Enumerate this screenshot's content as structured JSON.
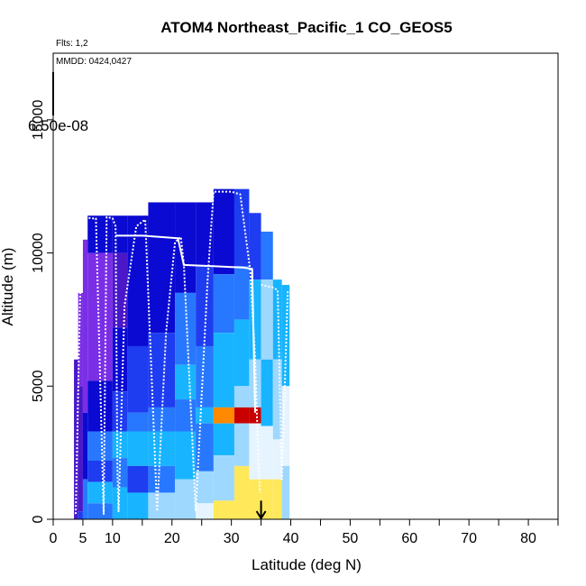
{
  "chart_data": {
    "type": "heatmap",
    "title": "ATOM4 Northeast_Pacific_1 CO_GEOS5",
    "flights_text": "Flts: 1,2",
    "date_text": "MMDD: 0424,0427",
    "colorbar_label": "6.50e-08",
    "xlabel": "Latitude (deg N)",
    "ylabel": "Altitude (m)",
    "xlim": [
      0,
      85
    ],
    "ylim": [
      0,
      17500
    ],
    "x_ticks": [
      0,
      5,
      10,
      20,
      30,
      40,
      50,
      60,
      70,
      80
    ],
    "y_ticks": [
      0,
      5000,
      10000,
      15000
    ],
    "marker": {
      "x": 35,
      "y_top": 700,
      "y_bottom": 0
    },
    "colors": {
      "deep_blue": "#0a0ad2",
      "blue": "#1e3cf0",
      "mid_blue": "#2878ff",
      "cyan": "#19b4ff",
      "light_blue": "#9ed8ff",
      "pale": "#e6f4ff",
      "yellow": "#ffe85a",
      "orange": "#ff8a00",
      "red": "#c80000",
      "purple": "#7a2ee6",
      "violet": "#4a18c8",
      "track": "#ffffff"
    },
    "columns": [
      {
        "x0": 3.5,
        "x1": 4.2,
        "top": 6000,
        "segments": [
          {
            "top": 6000,
            "bottom": 0,
            "color": "violet"
          }
        ]
      },
      {
        "x0": 4.2,
        "x1": 5.0,
        "top": 8500,
        "segments": [
          {
            "top": 8500,
            "bottom": 5000,
            "color": "purple"
          },
          {
            "top": 5000,
            "bottom": 300,
            "color": "violet"
          },
          {
            "top": 300,
            "bottom": 0,
            "color": "blue"
          }
        ]
      },
      {
        "x0": 5.0,
        "x1": 5.8,
        "top": 10500,
        "segments": [
          {
            "top": 10500,
            "bottom": 4000,
            "color": "purple"
          },
          {
            "top": 4000,
            "bottom": 1500,
            "color": "deep_blue"
          },
          {
            "top": 1500,
            "bottom": 0,
            "color": "mid_blue"
          }
        ]
      },
      {
        "x0": 5.8,
        "x1": 10.0,
        "top": 11400,
        "segments": [
          {
            "top": 11400,
            "bottom": 10000,
            "color": "deep_blue"
          },
          {
            "top": 10000,
            "bottom": 5200,
            "color": "purple"
          },
          {
            "top": 5200,
            "bottom": 3300,
            "color": "deep_blue"
          },
          {
            "top": 3300,
            "bottom": 2200,
            "color": "mid_blue"
          },
          {
            "top": 2200,
            "bottom": 1400,
            "color": "blue"
          },
          {
            "top": 1400,
            "bottom": 600,
            "color": "cyan"
          },
          {
            "top": 600,
            "bottom": 0,
            "color": "mid_blue"
          }
        ]
      },
      {
        "x0": 10.0,
        "x1": 12.5,
        "top": 11400,
        "segments": [
          {
            "top": 11400,
            "bottom": 10000,
            "color": "deep_blue"
          },
          {
            "top": 10000,
            "bottom": 7200,
            "color": "violet"
          },
          {
            "top": 7200,
            "bottom": 4800,
            "color": "deep_blue"
          },
          {
            "top": 4800,
            "bottom": 3300,
            "color": "blue"
          },
          {
            "top": 3300,
            "bottom": 2300,
            "color": "cyan"
          },
          {
            "top": 2300,
            "bottom": 1200,
            "color": "mid_blue"
          },
          {
            "top": 1200,
            "bottom": 0,
            "color": "cyan"
          }
        ]
      },
      {
        "x0": 12.5,
        "x1": 16.0,
        "top": 11400,
        "segments": [
          {
            "top": 11400,
            "bottom": 6500,
            "color": "deep_blue"
          },
          {
            "top": 6500,
            "bottom": 4000,
            "color": "blue"
          },
          {
            "top": 4000,
            "bottom": 3300,
            "color": "mid_blue"
          },
          {
            "top": 3300,
            "bottom": 2000,
            "color": "cyan"
          },
          {
            "top": 2000,
            "bottom": 1000,
            "color": "blue"
          },
          {
            "top": 1000,
            "bottom": 0,
            "color": "cyan"
          }
        ]
      },
      {
        "x0": 16.0,
        "x1": 20.5,
        "top": 11900,
        "segments": [
          {
            "top": 11900,
            "bottom": 7000,
            "color": "deep_blue"
          },
          {
            "top": 7000,
            "bottom": 4200,
            "color": "blue"
          },
          {
            "top": 4200,
            "bottom": 3300,
            "color": "mid_blue"
          },
          {
            "top": 3300,
            "bottom": 2000,
            "color": "cyan"
          },
          {
            "top": 2000,
            "bottom": 1000,
            "color": "mid_blue"
          },
          {
            "top": 1000,
            "bottom": 0,
            "color": "light_blue"
          }
        ]
      },
      {
        "x0": 20.5,
        "x1": 24.0,
        "top": 11900,
        "segments": [
          {
            "top": 11900,
            "bottom": 8500,
            "color": "deep_blue"
          },
          {
            "top": 8500,
            "bottom": 5800,
            "color": "mid_blue"
          },
          {
            "top": 5800,
            "bottom": 4500,
            "color": "cyan"
          },
          {
            "top": 4500,
            "bottom": 3300,
            "color": "mid_blue"
          },
          {
            "top": 3300,
            "bottom": 1500,
            "color": "cyan"
          },
          {
            "top": 1500,
            "bottom": 0,
            "color": "light_blue"
          }
        ]
      },
      {
        "x0": 24.0,
        "x1": 27.0,
        "top": 11900,
        "segments": [
          {
            "top": 11900,
            "bottom": 9500,
            "color": "deep_blue"
          },
          {
            "top": 9500,
            "bottom": 6500,
            "color": "blue"
          },
          {
            "top": 6500,
            "bottom": 4200,
            "color": "mid_blue"
          },
          {
            "top": 4200,
            "bottom": 3600,
            "color": "cyan"
          },
          {
            "top": 3600,
            "bottom": 1800,
            "color": "mid_blue"
          },
          {
            "top": 1800,
            "bottom": 600,
            "color": "light_blue"
          },
          {
            "top": 600,
            "bottom": 0,
            "color": "pale"
          }
        ]
      },
      {
        "x0": 27.0,
        "x1": 30.5,
        "top": 12400,
        "segments": [
          {
            "top": 12400,
            "bottom": 9200,
            "color": "deep_blue"
          },
          {
            "top": 9200,
            "bottom": 7000,
            "color": "mid_blue"
          },
          {
            "top": 7000,
            "bottom": 4200,
            "color": "cyan"
          },
          {
            "top": 4200,
            "bottom": 3600,
            "color": "orange"
          },
          {
            "top": 3600,
            "bottom": 2400,
            "color": "cyan"
          },
          {
            "top": 2400,
            "bottom": 700,
            "color": "light_blue"
          },
          {
            "top": 700,
            "bottom": 0,
            "color": "yellow"
          }
        ]
      },
      {
        "x0": 30.5,
        "x1": 33.0,
        "top": 12400,
        "segments": [
          {
            "top": 12400,
            "bottom": 9500,
            "color": "blue"
          },
          {
            "top": 9500,
            "bottom": 7500,
            "color": "mid_blue"
          },
          {
            "top": 7500,
            "bottom": 5000,
            "color": "cyan"
          },
          {
            "top": 5000,
            "bottom": 4200,
            "color": "light_blue"
          },
          {
            "top": 4200,
            "bottom": 3600,
            "color": "red"
          },
          {
            "top": 3600,
            "bottom": 2000,
            "color": "light_blue"
          },
          {
            "top": 2000,
            "bottom": 0,
            "color": "yellow"
          }
        ]
      },
      {
        "x0": 33.0,
        "x1": 35.0,
        "top": 11500,
        "segments": [
          {
            "top": 11500,
            "bottom": 9000,
            "color": "blue"
          },
          {
            "top": 9000,
            "bottom": 6000,
            "color": "cyan"
          },
          {
            "top": 6000,
            "bottom": 4200,
            "color": "light_blue"
          },
          {
            "top": 4200,
            "bottom": 3600,
            "color": "red"
          },
          {
            "top": 3600,
            "bottom": 1500,
            "color": "pale"
          },
          {
            "top": 1500,
            "bottom": 0,
            "color": "yellow"
          }
        ]
      },
      {
        "x0": 35.0,
        "x1": 37.0,
        "top": 10800,
        "segments": [
          {
            "top": 10800,
            "bottom": 9000,
            "color": "mid_blue"
          },
          {
            "top": 9000,
            "bottom": 6000,
            "color": "light_blue"
          },
          {
            "top": 6000,
            "bottom": 3500,
            "color": "cyan"
          },
          {
            "top": 3500,
            "bottom": 1500,
            "color": "pale"
          },
          {
            "top": 1500,
            "bottom": 0,
            "color": "yellow"
          }
        ]
      },
      {
        "x0": 37.0,
        "x1": 38.5,
        "top": 9000,
        "segments": [
          {
            "top": 9000,
            "bottom": 6000,
            "color": "cyan"
          },
          {
            "top": 6000,
            "bottom": 3000,
            "color": "light_blue"
          },
          {
            "top": 3000,
            "bottom": 1500,
            "color": "pale"
          },
          {
            "top": 1500,
            "bottom": 0,
            "color": "yellow"
          }
        ]
      },
      {
        "x0": 38.5,
        "x1": 39.8,
        "top": 8800,
        "segments": [
          {
            "top": 8800,
            "bottom": 5000,
            "color": "cyan"
          },
          {
            "top": 5000,
            "bottom": 2000,
            "color": "pale"
          },
          {
            "top": 2000,
            "bottom": 0,
            "color": "light_blue"
          }
        ]
      }
    ],
    "flight_track": [
      [
        3.8,
        200
      ],
      [
        4.5,
        8000
      ],
      [
        5.0,
        11350
      ],
      [
        6.5,
        11300
      ],
      [
        7.2,
        11300
      ],
      [
        8.5,
        200
      ],
      [
        9.0,
        11350
      ],
      [
        10.0,
        11300
      ],
      [
        10.5,
        11000
      ],
      [
        10.8,
        2000
      ],
      [
        11.0,
        300
      ],
      [
        12.0,
        8000
      ],
      [
        14.0,
        11000
      ],
      [
        15.5,
        11250
      ],
      [
        17.5,
        300
      ],
      [
        19.0,
        7000
      ],
      [
        20.5,
        10400
      ],
      [
        21.5,
        10600
      ],
      [
        22.0,
        9600
      ],
      [
        24.0,
        300
      ],
      [
        26.0,
        9000
      ],
      [
        27.0,
        12300
      ],
      [
        30.0,
        12300
      ],
      [
        31.5,
        12200
      ],
      [
        33.2,
        9300
      ],
      [
        34.0,
        6000
      ],
      [
        34.5,
        2500
      ],
      [
        34.8,
        1000
      ]
    ],
    "flight_track_2": [
      [
        10.5,
        10650
      ],
      [
        15.0,
        10650
      ],
      [
        21.0,
        10550
      ],
      [
        22.0,
        9550
      ],
      [
        27.0,
        9500
      ],
      [
        32.0,
        9450
      ],
      [
        33.5,
        9400
      ],
      [
        34.0,
        4000
      ]
    ],
    "flight_track_3": [
      [
        35.0,
        8800
      ],
      [
        37.0,
        8700
      ],
      [
        37.8,
        8600
      ],
      [
        38.5,
        1500
      ],
      [
        39.5,
        8600
      ]
    ]
  }
}
